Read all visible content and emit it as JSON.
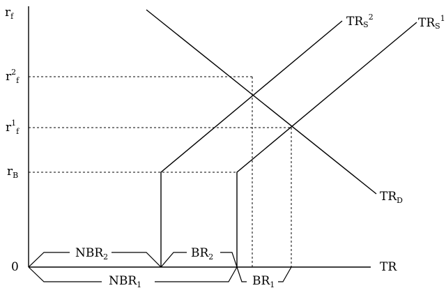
{
  "axes": {
    "y_label": {
      "main": "r",
      "sub": "f"
    },
    "x_label": "TR",
    "origin_label": "0"
  },
  "rate_levels": {
    "r2f": {
      "main": "r",
      "sup": "2",
      "sub": "f"
    },
    "r1f": {
      "main": "r",
      "sup": "1",
      "sub": "f"
    },
    "rB": {
      "main": "r",
      "sub": "B"
    }
  },
  "curves": {
    "supply_2": {
      "main": "TR",
      "sub": "S",
      "sup": "2"
    },
    "supply_1": {
      "main": "TR",
      "sub": "S",
      "sup": "1"
    },
    "demand": {
      "main": "TR",
      "sub": "D"
    }
  },
  "braces": {
    "nbr2": {
      "main": "NBR",
      "sub": "2"
    },
    "br2": {
      "main": "BR",
      "sub": "2"
    },
    "nbr1": {
      "main": "NBR",
      "sub": "1"
    },
    "br1": {
      "main": "BR",
      "sub": "1"
    }
  }
}
